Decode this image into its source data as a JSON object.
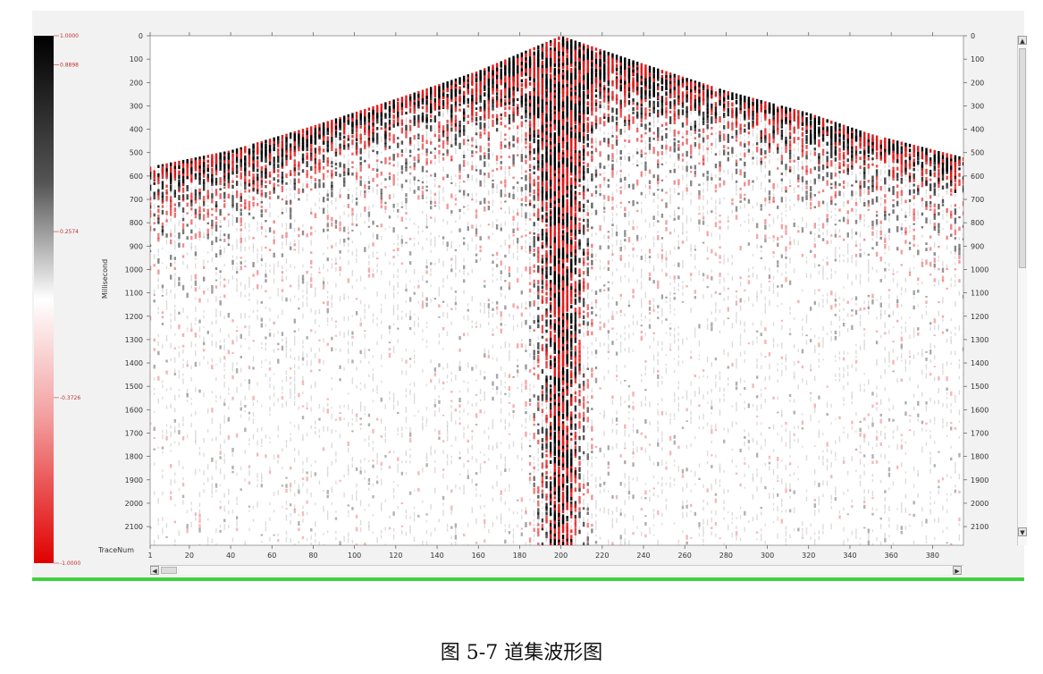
{
  "caption": "图 5-7 道集波形图",
  "colors": {
    "positive": "#000000",
    "negative": "#e01b1b",
    "background": "#ffffff",
    "frame": "#f2f2f2",
    "status_bar": "#3fd23f"
  },
  "chart_data": {
    "type": "heatmap",
    "title": "",
    "xlabel": "TraceNum",
    "ylabel": "Millisecond",
    "xlim": [
      1,
      395
    ],
    "ylim": [
      0,
      2180
    ],
    "y_inverted": true,
    "x_ticks": [
      1,
      20,
      40,
      60,
      80,
      100,
      120,
      140,
      160,
      180,
      200,
      220,
      240,
      260,
      280,
      300,
      320,
      340,
      360,
      380
    ],
    "y_ticks": [
      0,
      100,
      200,
      300,
      400,
      500,
      600,
      700,
      800,
      900,
      1000,
      1100,
      1200,
      1300,
      1400,
      1500,
      1600,
      1700,
      1800,
      1900,
      2000,
      2100
    ],
    "y_ticks_right": [
      "0",
      "100",
      "200",
      "300",
      "400",
      "500",
      "600",
      "700",
      "800",
      "900",
      "1000",
      "1100",
      "1200",
      "1300",
      "1400",
      "1500",
      "1600",
      "1700",
      "1800",
      "1900",
      "2000",
      "2100"
    ],
    "first_break": {
      "apex_trace": 200,
      "apex_time": 0,
      "points": [
        [
          1,
          560
        ],
        [
          40,
          490
        ],
        [
          80,
          385
        ],
        [
          120,
          270
        ],
        [
          160,
          150
        ],
        [
          200,
          0
        ],
        [
          240,
          120
        ],
        [
          280,
          235
        ],
        [
          320,
          330
        ],
        [
          350,
          420
        ],
        [
          395,
          520
        ]
      ]
    },
    "colorbar": {
      "min": -1.0,
      "max": 1.0,
      "labels": [
        "1.0000",
        "0.8898",
        "0.2574",
        "-0.3726",
        "-1.0000"
      ],
      "label_values": [
        1.0,
        0.8898,
        0.2574,
        -0.3726,
        -1.0
      ]
    }
  }
}
